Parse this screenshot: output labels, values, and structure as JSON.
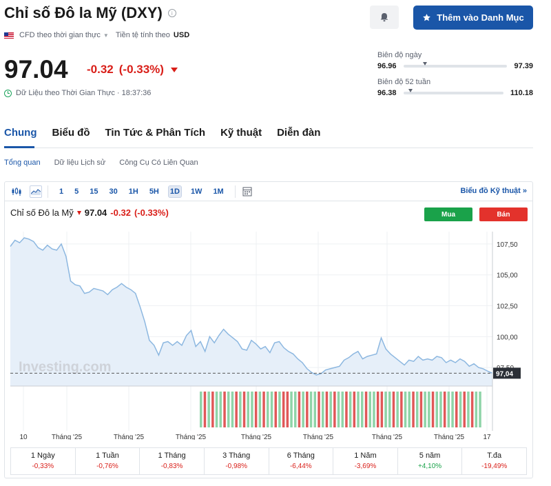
{
  "header": {
    "title": "Chỉ số Đô la Mỹ (DXY)",
    "add_button_label": "Thêm vào Danh Mục",
    "cfd_label": "CFD theo thời gian thực",
    "currency_label": "Tiền tệ tính theo",
    "currency_value": "USD"
  },
  "quote": {
    "price": "97.04",
    "change": "-0.32",
    "change_pct": "(-0.33%)",
    "realtime_label": "Dữ Liệu theo Thời Gian Thực · 18:37:36",
    "day_range": {
      "label": "Biên độ ngày",
      "low": "96.96",
      "high": "97.39",
      "current_fraction": 0.19
    },
    "week52_range": {
      "label": "Biên độ 52 tuần",
      "low": "96.38",
      "high": "110.18",
      "current_fraction": 0.05
    }
  },
  "tabs": [
    "Chung",
    "Biểu đồ",
    "Tin Tức & Phân Tích",
    "Kỹ thuật",
    "Diễn đàn"
  ],
  "subtabs": [
    "Tổng quan",
    "Dữ liệu Lịch sử",
    "Công Cụ Có Liên Quan"
  ],
  "chart_toolbar": {
    "timeframes": [
      "1",
      "5",
      "15",
      "30",
      "1H",
      "5H",
      "1D",
      "1W",
      "1M"
    ],
    "selected": "1D",
    "technical_link": "Biểu đồ Kỹ thuật »"
  },
  "chart_header": {
    "name": "Chỉ số Đô la Mỹ",
    "price": "97.04",
    "change": "-0.32",
    "change_pct": "(-0.33%)",
    "buy_label": "Mua",
    "sell_label": "Bán",
    "watermark": "Investing.com"
  },
  "chart_data": {
    "type": "area",
    "title": "Chỉ số Đô la Mỹ",
    "y_ticks": [
      "107,50",
      "105,00",
      "102,50",
      "100,00",
      "97,50"
    ],
    "ylim": [
      96.0,
      108.5
    ],
    "current_value": 97.04,
    "current_label": "97,04",
    "x_tick_labels": [
      "10",
      "Tháng '25",
      "Tháng '25",
      "Tháng '25",
      "Tháng '25",
      "Tháng '25",
      "Tháng '25",
      "Tháng '25",
      "17"
    ],
    "series": [
      {
        "values": [
          107.3,
          107.8,
          107.6,
          108.0,
          107.9,
          107.7,
          107.2,
          107.0,
          107.4,
          107.1,
          107.0,
          107.5,
          106.5,
          104.5,
          104.2,
          104.1,
          103.5,
          103.6,
          103.9,
          103.8,
          103.7,
          103.4,
          103.8,
          104.0,
          104.3,
          104.0,
          103.8,
          103.5,
          102.4,
          101.2,
          99.7,
          99.3,
          98.5,
          99.5,
          99.6,
          99.3,
          99.6,
          99.3,
          100.1,
          100.5,
          99.2,
          99.6,
          98.8,
          100.0,
          99.5,
          100.1,
          100.6,
          100.2,
          99.9,
          99.6,
          99.0,
          98.9,
          99.7,
          99.4,
          99.0,
          99.2,
          98.7,
          99.5,
          99.6,
          99.1,
          98.8,
          98.6,
          98.2,
          97.9,
          97.4,
          97.1,
          96.9,
          97.0,
          97.3,
          97.4,
          97.5,
          97.6,
          98.1,
          98.3,
          98.6,
          98.8,
          98.2,
          98.4,
          98.5,
          98.6,
          99.9,
          99.0,
          98.6,
          98.3,
          98.0,
          97.7,
          98.1,
          98.0,
          98.4,
          98.1,
          98.2,
          98.1,
          98.4,
          98.3,
          97.9,
          98.1,
          97.9,
          98.2,
          98.0,
          97.6,
          97.8,
          97.5,
          97.4,
          97.2,
          97.04
        ],
        "volume_bars": [
          1,
          0,
          1,
          0,
          1,
          1,
          0,
          1,
          1,
          0,
          1,
          0,
          1,
          1,
          0,
          1,
          0,
          1,
          1,
          0,
          1,
          0,
          0,
          1,
          1,
          0,
          1,
          0,
          1,
          1,
          0,
          1,
          0,
          1,
          0,
          1,
          1,
          0,
          1,
          0,
          1,
          1,
          0,
          1,
          1,
          0,
          0,
          1,
          1,
          0,
          1,
          0,
          1,
          1,
          0,
          1,
          0,
          1,
          1,
          0,
          1,
          1,
          0,
          1,
          1,
          0,
          1,
          0,
          1,
          0,
          1,
          1
        ]
      }
    ],
    "colors": {
      "line": "#8cb7e0",
      "fill": "#e6eff9",
      "up": "#8fd4a8",
      "down": "#e05858"
    }
  },
  "performance": [
    {
      "label": "1 Ngày",
      "value": "-0,33%",
      "color": "#d91e18"
    },
    {
      "label": "1 Tuần",
      "value": "-0,76%",
      "color": "#d91e18"
    },
    {
      "label": "1 Tháng",
      "value": "-0,83%",
      "color": "#d91e18"
    },
    {
      "label": "3 Tháng",
      "value": "-0,98%",
      "color": "#d91e18"
    },
    {
      "label": "6 Tháng",
      "value": "-6,44%",
      "color": "#d91e18"
    },
    {
      "label": "1 Năm",
      "value": "-3,69%",
      "color": "#d91e18"
    },
    {
      "label": "5 năm",
      "value": "+4,10%",
      "color": "#1aa24a"
    },
    {
      "label": "T.đa",
      "value": "-19,49%",
      "color": "#d91e18"
    }
  ]
}
